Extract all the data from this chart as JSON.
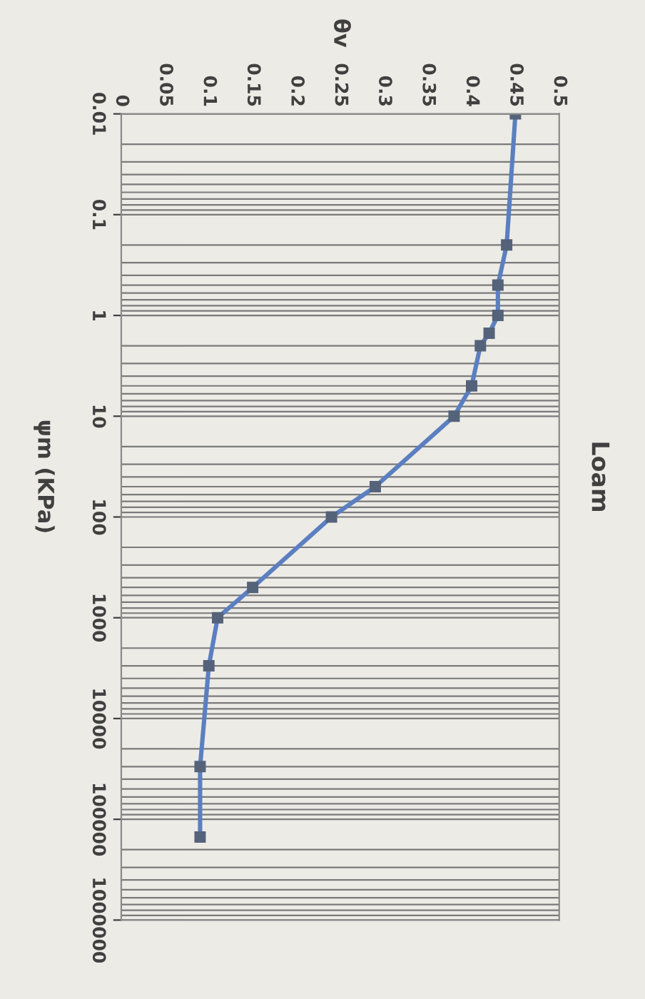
{
  "chart_data": {
    "type": "line",
    "title": "Loam",
    "x2label": "θv",
    "ylabel": "ψm (KPa)",
    "x": [
      0.45,
      0.44,
      0.43,
      0.43,
      0.42,
      0.41,
      0.4,
      0.38,
      0.29,
      0.24,
      0.15,
      0.11,
      0.1,
      0.09,
      0.09
    ],
    "series": [
      {
        "color": "#5b7fc0",
        "values": [
          0.01,
          0.2,
          0.5,
          1,
          1.5,
          2,
          5,
          10,
          50,
          100,
          500,
          1000,
          3000,
          30000,
          150000
        ]
      }
    ],
    "log": "y",
    "ylim": [
      1000000,
      0.01
    ],
    "yticks": [
      0.01,
      0.1,
      1,
      10,
      100,
      1000,
      10000,
      100000,
      1000000
    ],
    "xlim": [
      0,
      0.5
    ],
    "xticks": [
      0,
      0.05,
      0.1,
      0.15,
      0.2,
      0.25,
      0.3,
      0.35,
      0.4,
      0.45,
      0.5
    ],
    "grid": "y",
    "marker": "square",
    "line_style": "solid",
    "legend": false
  }
}
